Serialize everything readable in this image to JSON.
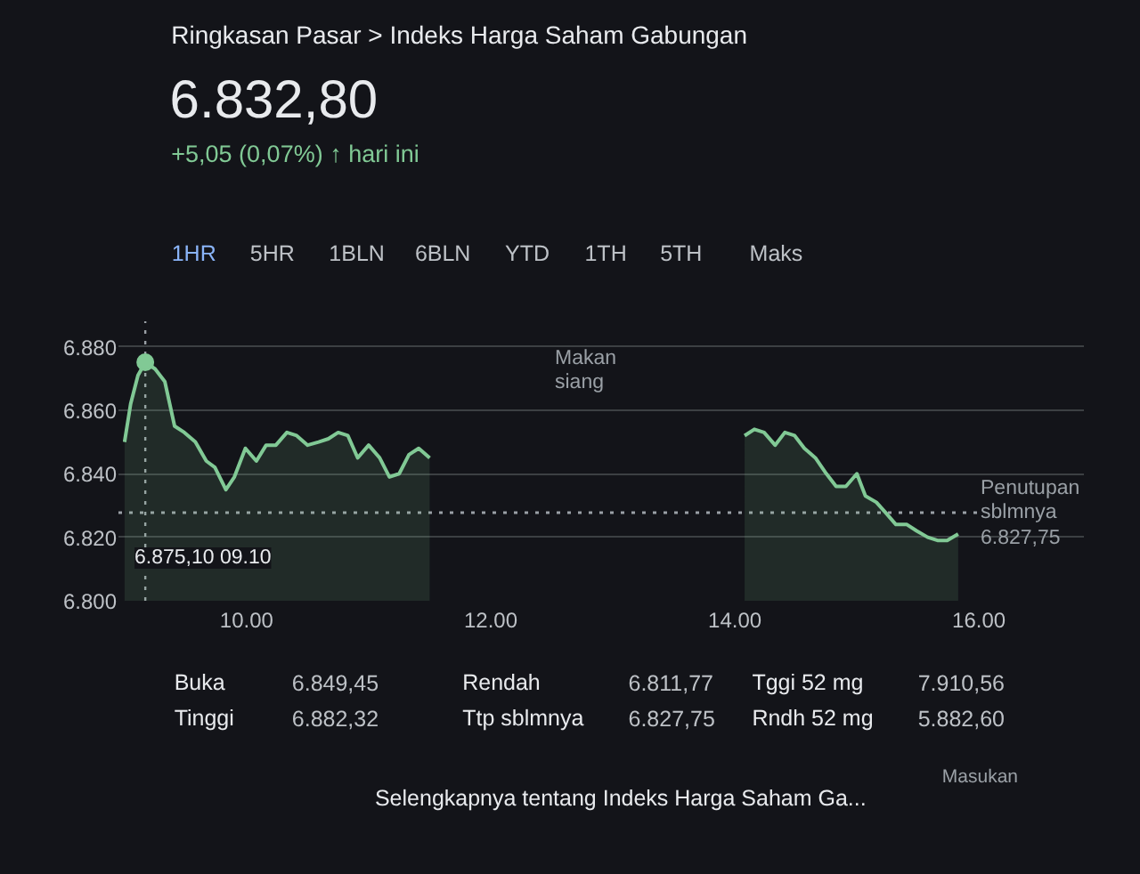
{
  "chart_data": {
    "type": "area",
    "title": "Ringkasan Pasar > Indeks Harga Saham Gabungan",
    "subtitle": "6.832,80",
    "x": [
      9.0,
      9.05,
      9.11,
      9.17,
      9.25,
      9.33,
      9.41,
      9.49,
      9.58,
      9.67,
      9.74,
      9.83,
      9.9,
      9.99,
      10.08,
      10.16,
      10.24,
      10.33,
      10.41,
      10.5,
      10.59,
      10.67,
      10.75,
      10.83,
      10.91,
      11.0,
      11.09,
      11.17,
      11.25,
      11.33,
      11.41,
      11.5,
      12.8,
      14.08,
      14.16,
      14.24,
      14.33,
      14.41,
      14.49,
      14.57,
      14.66,
      14.75,
      14.83,
      14.91,
      15.0,
      15.07,
      15.16,
      15.23,
      15.32,
      15.41,
      15.49,
      15.58,
      15.66,
      15.74,
      15.83
    ],
    "series": [
      {
        "color": "#81c995",
        "values": [
          6850,
          6862,
          6871,
          6875.1,
          6873,
          6869,
          6855,
          6853,
          6850,
          6844,
          6842,
          6835,
          6839,
          6848,
          6844,
          6849,
          6849,
          6853,
          6852,
          6849,
          6850,
          6851,
          6853,
          6852,
          6845,
          6849,
          6845,
          6839,
          6840,
          6846,
          6848,
          6845,
          null,
          6852,
          6854,
          6853,
          6849,
          6853,
          6852,
          6848,
          6845,
          6840,
          6836,
          6836,
          6840,
          6833,
          6831,
          6828,
          6824,
          6824,
          6822,
          6820,
          6819,
          6819,
          6821
        ]
      },
      {
        "type": "scatter",
        "marker": "circle",
        "color": "#81c995",
        "x": [
          9.17
        ],
        "values": [
          6875.1
        ]
      }
    ],
    "xlim": [
      8.95,
      16.86
    ],
    "xticks": [
      {
        "value": 10,
        "label": "10.00"
      },
      {
        "value": 12,
        "label": "12.00"
      },
      {
        "value": 14,
        "label": "14.00"
      },
      {
        "value": 16,
        "label": "16.00"
      }
    ],
    "ylim": [
      6800,
      6888
    ],
    "yticks": [
      {
        "value": 6800,
        "label": "6.800"
      },
      {
        "value": 6820,
        "label": "6.820"
      },
      {
        "value": 6840,
        "label": "6.840"
      },
      {
        "value": 6860,
        "label": "6.860"
      },
      {
        "value": 6880,
        "label": "6.880"
      }
    ],
    "grid": "y",
    "ref_lines": [
      {
        "axis": "y",
        "value": 6827.75,
        "label": "Penutupan\nsblmnya\n6.827,75",
        "color": "#9aa0a6",
        "line_style": "dotted"
      },
      {
        "axis": "x",
        "value": 9.17,
        "color": "#9aa0a6",
        "line_style": "dotted"
      }
    ],
    "annotations": [
      "+5,05 (0,07%) ↑ hari ini",
      "1HR",
      "5HR",
      "1BLN",
      "6BLN",
      "YTD",
      "1TH",
      "5TH",
      "Maks",
      "Makan\nsiang",
      "6.875,10 09.10",
      "Buka",
      "6.849,45",
      "Rendah",
      "6.811,77",
      "Tggi 52 mg",
      "7.910,56",
      "Tinggi",
      "6.882,32",
      "Ttp sblmnya",
      "6.827,75",
      "Rndh 52 mg",
      "5.882,60",
      "Masukan",
      "Selengkapnya tentang Indeks Harga Saham Ga..."
    ]
  }
}
